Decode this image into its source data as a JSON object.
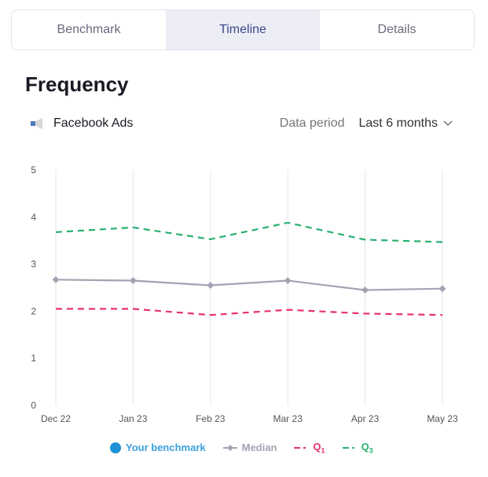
{
  "tabs": [
    {
      "label": "Benchmark"
    },
    {
      "label": "Timeline",
      "active": true
    },
    {
      "label": "Details"
    }
  ],
  "title": "Frequency",
  "source": {
    "label": "Facebook Ads",
    "icon": "megaphone-icon"
  },
  "period": {
    "label": "Data period",
    "value": "Last 6 months"
  },
  "colors": {
    "benchmark": "#1e90d6",
    "median": "#a3a3b3",
    "q1": "#e8336b",
    "q3": "#27b06e"
  },
  "legend": {
    "benchmark": "Your benchmark",
    "median": "Median",
    "q1": "Q",
    "q1_sub": "1",
    "q3": "Q",
    "q3_sub": "3"
  },
  "chart_data": {
    "type": "line",
    "categories": [
      "Dec 22",
      "Jan 23",
      "Feb 23",
      "Mar 23",
      "Apr 23",
      "May 23"
    ],
    "ylim": [
      0,
      5
    ],
    "yticks": [
      "0",
      "1",
      "2",
      "3",
      "4",
      "5"
    ],
    "grid": "vertical",
    "legend_position": "bottom",
    "series": [
      {
        "name": "Median",
        "values": [
          2.67,
          2.65,
          2.55,
          2.65,
          2.45,
          2.48
        ],
        "style": "solid-diamond"
      },
      {
        "name": "Q1",
        "values": [
          2.05,
          2.05,
          1.92,
          2.03,
          1.95,
          1.92
        ],
        "style": "dashed"
      },
      {
        "name": "Q3",
        "values": [
          3.68,
          3.78,
          3.53,
          3.88,
          3.52,
          3.47
        ],
        "style": "dashed"
      }
    ]
  }
}
